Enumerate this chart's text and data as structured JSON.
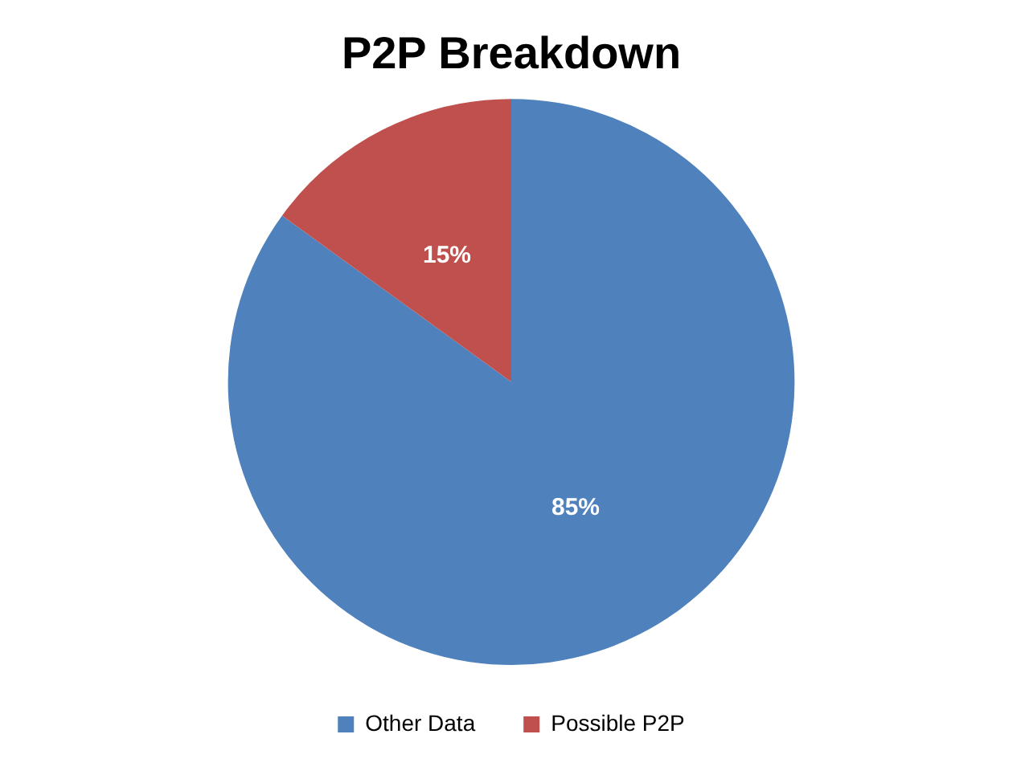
{
  "chart_data": {
    "type": "pie",
    "title": "P2P Breakdown",
    "categories": [
      "Other Data",
      "Possible P2P"
    ],
    "values": [
      85,
      15
    ],
    "value_labels": [
      "85%",
      "15%"
    ],
    "colors": [
      "#4f81bd",
      "#c0504d"
    ],
    "legend": "bottom"
  }
}
